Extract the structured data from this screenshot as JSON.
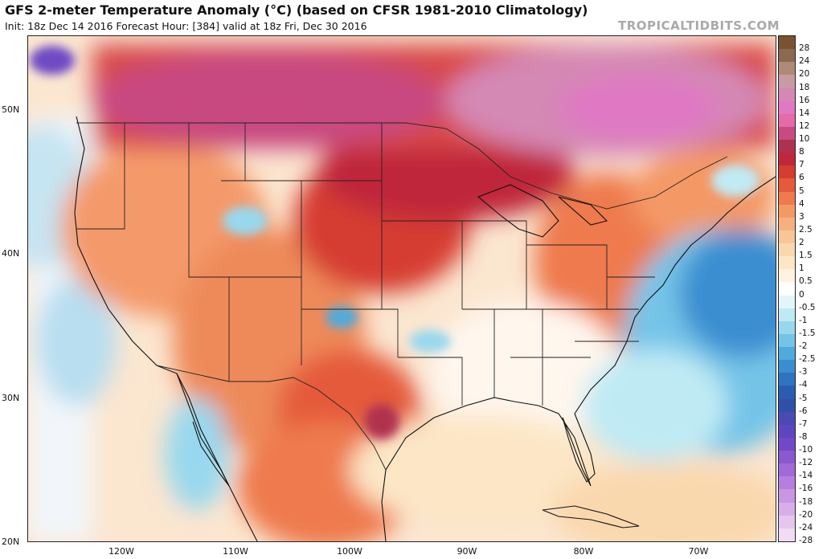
{
  "header": {
    "title": "GFS 2-meter Temperature Anomaly (°C) (based on CFSR 1981-2010 Climatology)",
    "subtitle": "Init: 18z Dec 14 2016   Forecast Hour: [384]   valid at 18z Fri, Dec 30 2016",
    "brand": "TROPICALTIDBITS.COM"
  },
  "axes": {
    "lat_labels": [
      "50N",
      "40N",
      "30N",
      "20N"
    ],
    "lon_labels": [
      "120W",
      "110W",
      "100W",
      "90W",
      "80W",
      "70W"
    ]
  },
  "colorbar": {
    "levels": [
      {
        "label": "28",
        "color": "#7a5230"
      },
      {
        "label": "24",
        "color": "#8a6a50"
      },
      {
        "label": "20",
        "color": "#b08a78"
      },
      {
        "label": "18",
        "color": "#c89aa4"
      },
      {
        "label": "16",
        "color": "#d488b4"
      },
      {
        "label": "14",
        "color": "#e078c4"
      },
      {
        "label": "12",
        "color": "#e46aa8"
      },
      {
        "label": "10",
        "color": "#c84a80"
      },
      {
        "label": "8",
        "color": "#b03050"
      },
      {
        "label": "7",
        "color": "#c0283a"
      },
      {
        "label": "6",
        "color": "#d63c30"
      },
      {
        "label": "5",
        "color": "#e45a3a"
      },
      {
        "label": "4",
        "color": "#ee7a4e"
      },
      {
        "label": "3",
        "color": "#f49866"
      },
      {
        "label": "2.5",
        "color": "#f6b07e"
      },
      {
        "label": "2",
        "color": "#f8c696"
      },
      {
        "label": "1.5",
        "color": "#fad8ae"
      },
      {
        "label": "1",
        "color": "#fce6c6"
      },
      {
        "label": "0.5",
        "color": "#fef2e0"
      },
      {
        "label": "0",
        "color": "#ffffff"
      },
      {
        "label": "-0.5",
        "color": "#e2f6fa"
      },
      {
        "label": "-1",
        "color": "#bfeaf4"
      },
      {
        "label": "-1.5",
        "color": "#98d8ee"
      },
      {
        "label": "-2",
        "color": "#74c4e8"
      },
      {
        "label": "-2.5",
        "color": "#50aadc"
      },
      {
        "label": "-3",
        "color": "#3a8ed0"
      },
      {
        "label": "-4",
        "color": "#2e74c2"
      },
      {
        "label": "-5",
        "color": "#2a5cb2"
      },
      {
        "label": "-6",
        "color": "#3050a8"
      },
      {
        "label": "-7",
        "color": "#4a4ab4"
      },
      {
        "label": "-8",
        "color": "#5e46c0"
      },
      {
        "label": "-10",
        "color": "#7248c8"
      },
      {
        "label": "-12",
        "color": "#8a58d0"
      },
      {
        "label": "-14",
        "color": "#a06ad8"
      },
      {
        "label": "-16",
        "color": "#b67ede"
      },
      {
        "label": "-18",
        "color": "#c896e2"
      },
      {
        "label": "-20",
        "color": "#d8aee8"
      },
      {
        "label": "-24",
        "color": "#e6c6ee"
      },
      {
        "label": "-28",
        "color": "#f2dcf4"
      }
    ]
  }
}
